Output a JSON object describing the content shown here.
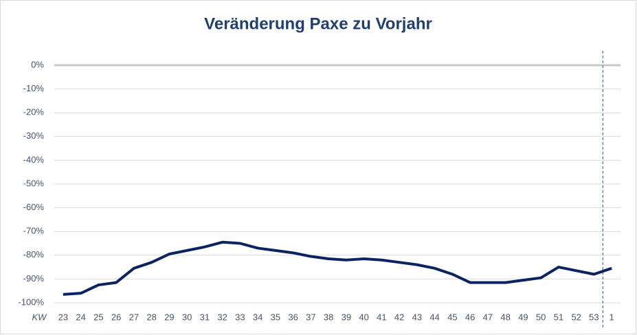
{
  "chart_data": {
    "type": "line",
    "title": "Veränderung Paxe zu Vorjahr",
    "x_label": "KW",
    "categories": [
      "23",
      "24",
      "25",
      "26",
      "27",
      "28",
      "29",
      "30",
      "31",
      "32",
      "33",
      "34",
      "35",
      "36",
      "37",
      "38",
      "39",
      "40",
      "41",
      "42",
      "43",
      "44",
      "45",
      "46",
      "47",
      "48",
      "49",
      "50",
      "51",
      "52",
      "53",
      "1"
    ],
    "series": [
      {
        "name": "Veränderung Paxe zu Vorjahr",
        "color": "#0b2461",
        "values": [
          -96.5,
          -96,
          -92.5,
          -91.5,
          -85.5,
          -83,
          -79.5,
          -78,
          -76.5,
          -74.5,
          -75,
          -77,
          -78,
          -79,
          -80.5,
          -81.5,
          -82,
          -81.5,
          -82,
          -83,
          -84,
          -85.5,
          -88,
          -91.5,
          -91.5,
          -91.5,
          -90.5,
          -89.5,
          -85,
          -86.5,
          -88,
          -85.5
        ]
      }
    ],
    "ylim": [
      -100,
      0
    ],
    "yticks": [
      {
        "value": 0,
        "label": "0%"
      },
      {
        "value": -10,
        "label": "-10%"
      },
      {
        "value": -20,
        "label": "-20%"
      },
      {
        "value": -30,
        "label": "-30%"
      },
      {
        "value": -40,
        "label": "-40%"
      },
      {
        "value": -50,
        "label": "-50%"
      },
      {
        "value": -60,
        "label": "-60%"
      },
      {
        "value": -70,
        "label": "-70%"
      },
      {
        "value": -80,
        "label": "-80%"
      },
      {
        "value": -90,
        "label": "-90%"
      },
      {
        "value": -100,
        "label": "-100%"
      }
    ],
    "grid": true
  }
}
